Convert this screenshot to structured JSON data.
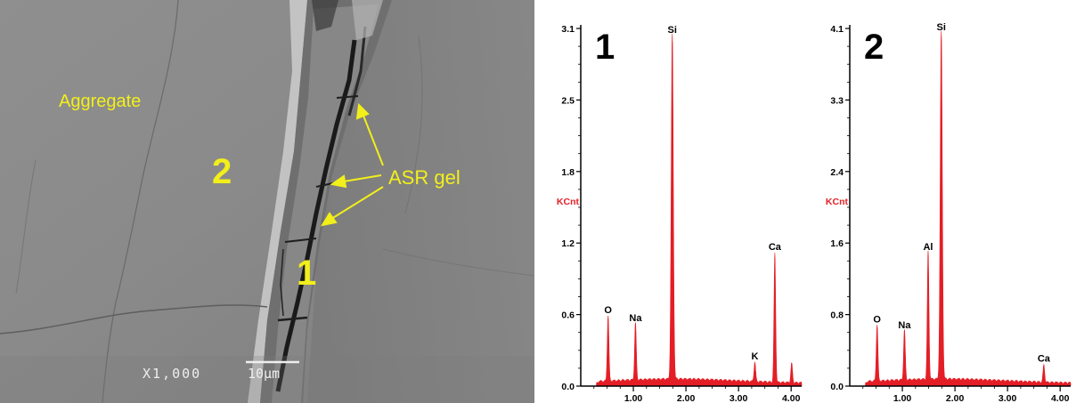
{
  "micrograph": {
    "labels": {
      "aggregate": "Aggregate",
      "asr_gel": "ASR gel",
      "region_1": "1",
      "region_2": "2"
    },
    "magnification": "X1,000",
    "scale_bar": "10µm",
    "label_color": "#f2ef1a"
  },
  "chart_data": [
    {
      "type": "bar",
      "panel_label": "1",
      "ylabel": "KCnt",
      "xlabel": "",
      "x_ticks": [
        "1.00",
        "2.00",
        "3.00",
        "4.00"
      ],
      "y_ticks": [
        "0.0",
        "0.6",
        "1.2",
        "1.8",
        "2.5",
        "3.1"
      ],
      "xlim": [
        0.0,
        4.2
      ],
      "ylim": [
        0.0,
        3.1
      ],
      "color": "#e41e26",
      "peaks": [
        {
          "element": "O",
          "x": 0.52,
          "y": 0.57
        },
        {
          "element": "Na",
          "x": 1.04,
          "y": 0.5
        },
        {
          "element": "Si",
          "x": 1.74,
          "y": 3.0
        },
        {
          "element": "K",
          "x": 3.31,
          "y": 0.17
        },
        {
          "element": "Ca",
          "x": 3.69,
          "y": 1.12
        }
      ],
      "minor_peaks": [
        {
          "x": 4.01,
          "y": 0.17
        }
      ]
    },
    {
      "type": "bar",
      "panel_label": "2",
      "ylabel": "KCnt",
      "xlabel": "",
      "x_ticks": [
        "1.00",
        "2.00",
        "3.00",
        "4.00"
      ],
      "y_ticks": [
        "0.0",
        "0.8",
        "1.6",
        "2.4",
        "3.3",
        "4.1"
      ],
      "xlim": [
        0.0,
        4.2
      ],
      "ylim": [
        0.0,
        4.1
      ],
      "color": "#e41e26",
      "peaks": [
        {
          "element": "O",
          "x": 0.52,
          "y": 0.65
        },
        {
          "element": "Na",
          "x": 1.04,
          "y": 0.58
        },
        {
          "element": "Al",
          "x": 1.49,
          "y": 1.48
        },
        {
          "element": "Si",
          "x": 1.74,
          "y": 4.0
        },
        {
          "element": "Ca",
          "x": 3.69,
          "y": 0.2
        }
      ],
      "minor_peaks": []
    }
  ]
}
